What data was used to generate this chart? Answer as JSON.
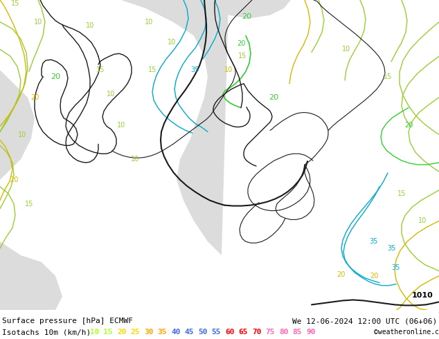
{
  "title_line1": "Surface pressure [hPa] ECMWF",
  "title_line2": "Isotachs 10m (km/h)",
  "date_str": "We 12-06-2024 12:00 UTC (06+06)",
  "credit": "©weatheronline.co.uk",
  "bottom_bar_bg": "#ffffff",
  "map_bg_light": "#c8f0a0",
  "map_bg_grey": "#dcdcdc",
  "figsize": [
    6.34,
    4.9
  ],
  "dpi": 100,
  "isotach_labels": [
    "10",
    "15",
    "20",
    "25",
    "30",
    "35",
    "40",
    "45",
    "50",
    "55",
    "60",
    "65",
    "70",
    "75",
    "80",
    "85",
    "90"
  ],
  "label_colors_map": {
    "10": "#adff2f",
    "15": "#adff2f",
    "20": "#ffd700",
    "25": "#ffd700",
    "30": "#ffa500",
    "35": "#ffa500",
    "40": "#4169e1",
    "45": "#4169e1",
    "50": "#4169e1",
    "55": "#4169e1",
    "60": "#ff0000",
    "65": "#ff0000",
    "70": "#ff0000",
    "75": "#ff69b4",
    "80": "#ff69b4",
    "85": "#ff69b4",
    "90": "#ff69b4"
  }
}
